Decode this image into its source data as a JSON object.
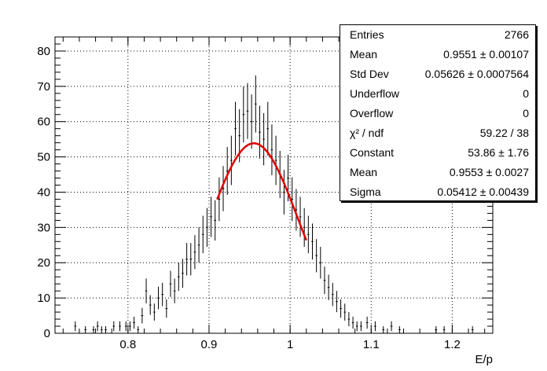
{
  "chart_data": {
    "type": "histogram",
    "xlabel": "E/p",
    "ylabel": "",
    "xlim": [
      0.71,
      1.25
    ],
    "ylim": [
      0,
      84
    ],
    "x_ticks": [
      0.8,
      0.9,
      1.0,
      1.1,
      1.2
    ],
    "x_tick_labels": [
      "0.8",
      "0.9",
      "1",
      "1.1",
      "1.2"
    ],
    "y_ticks": [
      0,
      10,
      20,
      30,
      40,
      50,
      60,
      70,
      80
    ],
    "y_tick_labels": [
      "0",
      "10",
      "20",
      "30",
      "40",
      "50",
      "60",
      "70",
      "80"
    ],
    "grid": true,
    "legend_position": "top-right",
    "bin_width": 0.0025,
    "histogram": {
      "x": [
        0.735,
        0.7475,
        0.7575,
        0.7625,
        0.7675,
        0.7725,
        0.7825,
        0.79,
        0.7975,
        0.8025,
        0.8075,
        0.8125,
        0.8175,
        0.8225,
        0.8275,
        0.8325,
        0.8375,
        0.8425,
        0.8475,
        0.8525,
        0.8575,
        0.8625,
        0.8675,
        0.8725,
        0.8775,
        0.8825,
        0.8875,
        0.8925,
        0.8975,
        0.9025,
        0.9075,
        0.9125,
        0.9175,
        0.9225,
        0.9275,
        0.9325,
        0.9375,
        0.9425,
        0.9475,
        0.9525,
        0.9575,
        0.9625,
        0.9675,
        0.9725,
        0.9775,
        0.9825,
        0.9875,
        0.9925,
        0.9975,
        1.0025,
        1.0075,
        1.0125,
        1.0175,
        1.0225,
        1.0275,
        1.0325,
        1.0375,
        1.0425,
        1.0475,
        1.0525,
        1.0575,
        1.0625,
        1.0675,
        1.0725,
        1.0775,
        1.0825,
        1.0875,
        1.095,
        1.105,
        1.115,
        1.125,
        1.135,
        1.18,
        1.19,
        1.225
      ],
      "y": [
        2,
        1,
        1,
        2,
        1,
        1,
        2,
        2,
        2,
        2,
        3,
        1,
        5,
        12,
        8,
        6,
        10,
        11,
        7,
        14,
        12,
        16,
        17,
        21,
        21,
        23,
        25,
        28,
        30,
        33,
        32,
        38,
        41,
        46,
        49,
        58,
        56,
        62,
        63,
        60,
        65,
        57,
        55,
        58,
        52,
        49,
        45,
        40,
        44,
        38,
        35,
        33,
        30,
        28,
        26,
        22,
        20,
        15,
        13,
        11,
        9,
        7,
        6,
        4,
        3,
        2,
        2,
        3,
        2,
        1,
        2,
        1,
        1,
        1,
        1
      ],
      "y_err": [
        1.4,
        1.0,
        1.0,
        1.4,
        1.0,
        1.0,
        1.4,
        1.4,
        1.4,
        1.4,
        1.7,
        1.0,
        2.2,
        3.5,
        2.8,
        2.4,
        3.2,
        3.3,
        2.6,
        3.7,
        3.5,
        4.0,
        4.1,
        4.6,
        4.6,
        4.8,
        5.0,
        5.3,
        5.5,
        5.7,
        5.7,
        6.2,
        6.4,
        6.8,
        7.0,
        7.6,
        7.5,
        7.9,
        7.9,
        7.7,
        8.1,
        7.5,
        7.4,
        7.6,
        7.2,
        7.0,
        6.7,
        6.3,
        6.6,
        6.2,
        5.9,
        5.7,
        5.5,
        5.3,
        5.1,
        4.7,
        4.5,
        3.9,
        3.6,
        3.3,
        3.0,
        2.6,
        2.4,
        2.0,
        1.7,
        1.4,
        1.4,
        1.7,
        1.4,
        1.0,
        1.4,
        1.0,
        1.0,
        1.0,
        1.0
      ]
    },
    "fit": {
      "function": "gaus",
      "constant": 53.86,
      "mean": 0.9553,
      "sigma": 0.05412,
      "range": [
        0.91,
        1.02
      ]
    },
    "colors": {
      "data": "#000000",
      "fit": "#e00000",
      "grid": "#000000"
    },
    "stats": [
      {
        "label": "Entries",
        "value": "2766"
      },
      {
        "label": "Mean",
        "value": "0.9551 ± 0.00107"
      },
      {
        "label": "Std Dev",
        "value": "0.05626 ± 0.0007564"
      },
      {
        "label": "Underflow",
        "value": "0"
      },
      {
        "label": "Overflow",
        "value": "0"
      },
      {
        "label": "χ² / ndf",
        "value": "59.22 / 38"
      },
      {
        "label": "Constant",
        "value": "53.86 ± 1.76"
      },
      {
        "label": "Mean",
        "value": "0.9553 ± 0.0027"
      },
      {
        "label": "Sigma",
        "value": "0.05412 ± 0.00439"
      }
    ]
  }
}
